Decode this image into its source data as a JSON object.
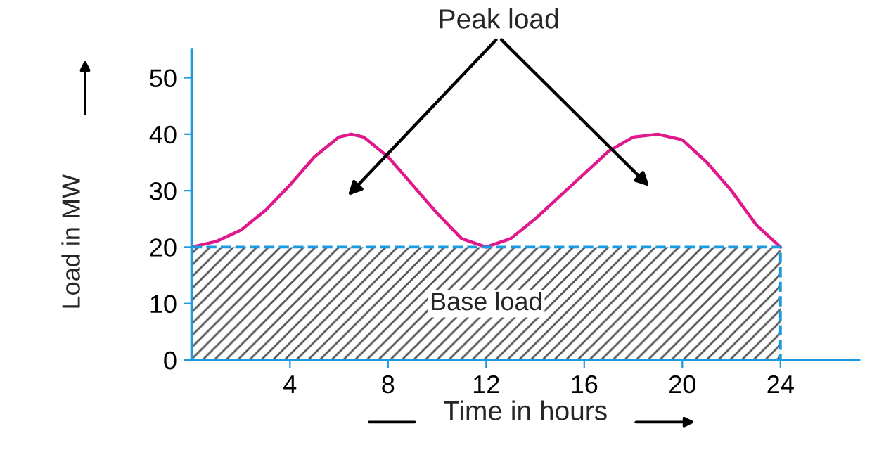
{
  "chart_data": {
    "type": "line",
    "xlabel": "Time in hours",
    "ylabel": "Load in MW",
    "xlim": [
      0,
      27.2
    ],
    "ylim": [
      0,
      55
    ],
    "xticks": [
      4,
      8,
      12,
      16,
      20,
      24
    ],
    "yticks": [
      0,
      10,
      20,
      30,
      40,
      50
    ],
    "grid": false,
    "series": [
      {
        "color": "#e0188c",
        "x": [
          0,
          1,
          2,
          3,
          4,
          5,
          6,
          6.5,
          7,
          8,
          9,
          10,
          11,
          12,
          13,
          14,
          15,
          16,
          17,
          18,
          19,
          20,
          21,
          22,
          23,
          24
        ],
        "values": [
          20,
          21,
          23,
          26.5,
          31,
          36,
          39.5,
          40,
          39.5,
          36,
          31,
          26,
          21.5,
          20,
          21.5,
          25,
          29,
          33,
          37,
          39.5,
          40,
          39,
          35,
          30,
          24,
          20
        ]
      },
      {
        "type": "area",
        "name": "Base load",
        "color": "#1a9be0",
        "x": [
          0,
          24,
          24
        ],
        "values": [
          20,
          20,
          0
        ]
      }
    ],
    "annotations": [
      "Peak load"
    ]
  }
}
